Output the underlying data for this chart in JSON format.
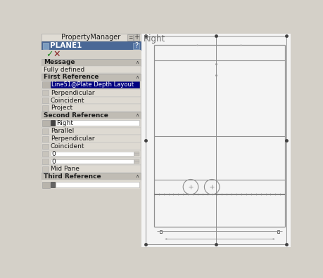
{
  "bg_color": "#d4d0c8",
  "pm_title": "PropertyManager",
  "plane1_label": "PLANE1",
  "plane1_q": "?",
  "message_label": "Message",
  "message_value": "Fully defined",
  "first_ref_label": "First Reference",
  "first_ref_value": "Line51@Plate Depth Layout",
  "first_ref_items": [
    "Perpendicular",
    "Coincident",
    "Project"
  ],
  "second_ref_label": "Second Reference",
  "second_ref_value": "Right",
  "second_ref_items": [
    "Parallel",
    "Perpendicular",
    "Coincident"
  ],
  "second_ref_fields": [
    "0",
    "0"
  ],
  "second_ref_midpane": "Mid Pane",
  "third_ref_label": "Third Reference",
  "right_view_label": "Right",
  "panel_bg": "#d4d0c8",
  "titlebar_bg": "#e0dcd4",
  "section_header_bg": "#c0bcb4",
  "row_bg": "#dedad2",
  "plane1_bg": "#4a6896",
  "selected_bg": "#000080",
  "selected_text": "#ffffff",
  "white": "#ffffff",
  "input_bg": "#f0eeea",
  "cad_bg": "#f4f4f4",
  "line_color": "#909090",
  "dark_line": "#606060",
  "dot_color": "#404040",
  "text_dark": "#1a1a1a",
  "text_gray": "#505050"
}
